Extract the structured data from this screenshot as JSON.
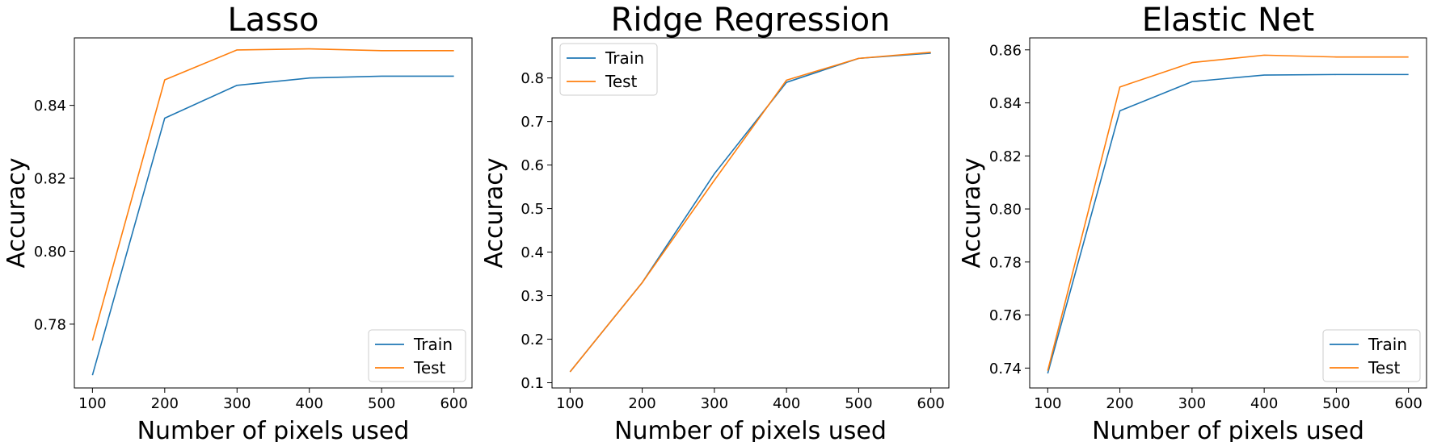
{
  "chart_data": [
    {
      "type": "line",
      "title": "Lasso",
      "xlabel": "Number of pixels used",
      "ylabel": "Accuracy",
      "x": [
        100,
        200,
        300,
        400,
        500,
        600
      ],
      "xticks": [
        100,
        200,
        300,
        400,
        500,
        600
      ],
      "xlim": [
        75,
        625
      ],
      "yticks": [
        0.78,
        0.8,
        0.82,
        0.84
      ],
      "ylim": [
        0.7625,
        0.8585
      ],
      "legend": "lower right",
      "series": [
        {
          "name": "Train",
          "color": "#1f77b4",
          "values": [
            0.766,
            0.8365,
            0.8455,
            0.8475,
            0.848,
            0.848
          ]
        },
        {
          "name": "Test",
          "color": "#ff7f0e",
          "values": [
            0.7755,
            0.847,
            0.8552,
            0.8555,
            0.855,
            0.855
          ]
        }
      ]
    },
    {
      "type": "line",
      "title": "Ridge Regression",
      "xlabel": "Number of pixels used",
      "ylabel": "Accuracy",
      "x": [
        100,
        200,
        300,
        400,
        500,
        600
      ],
      "xticks": [
        100,
        200,
        300,
        400,
        500,
        600
      ],
      "xlim": [
        75,
        625
      ],
      "yticks": [
        0.1,
        0.2,
        0.3,
        0.4,
        0.5,
        0.6,
        0.7,
        0.8
      ],
      "ylim": [
        0.088,
        0.892
      ],
      "legend": "upper left",
      "series": [
        {
          "name": "Train",
          "color": "#1f77b4",
          "values": [
            0.125,
            0.33,
            0.58,
            0.79,
            0.845,
            0.857
          ]
        },
        {
          "name": "Test",
          "color": "#ff7f0e",
          "values": [
            0.125,
            0.33,
            0.565,
            0.795,
            0.845,
            0.859
          ]
        }
      ]
    },
    {
      "type": "line",
      "title": "Elastic Net",
      "xlabel": "Number of pixels used",
      "ylabel": "Accuracy",
      "x": [
        100,
        200,
        300,
        400,
        500,
        600
      ],
      "xticks": [
        100,
        200,
        300,
        400,
        500,
        600
      ],
      "xlim": [
        75,
        625
      ],
      "yticks": [
        0.74,
        0.76,
        0.78,
        0.8,
        0.82,
        0.84,
        0.86
      ],
      "ylim": [
        0.7325,
        0.8645
      ],
      "legend": "lower right",
      "series": [
        {
          "name": "Train",
          "color": "#1f77b4",
          "values": [
            0.738,
            0.837,
            0.848,
            0.8505,
            0.8507,
            0.8507
          ]
        },
        {
          "name": "Test",
          "color": "#ff7f0e",
          "values": [
            0.739,
            0.846,
            0.8552,
            0.858,
            0.8573,
            0.8573
          ]
        }
      ]
    }
  ]
}
